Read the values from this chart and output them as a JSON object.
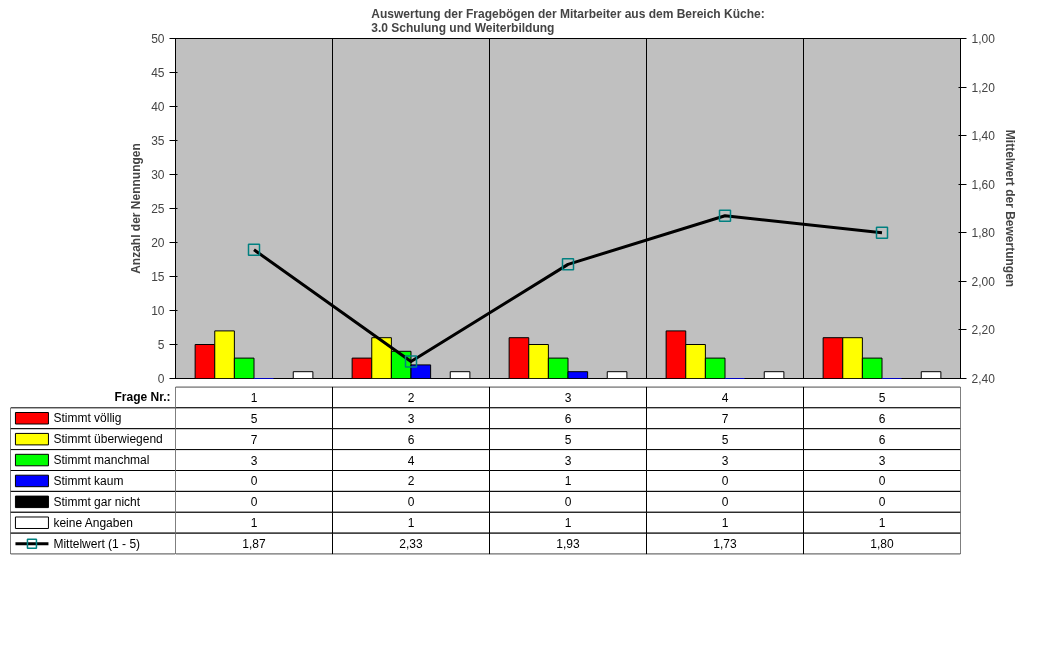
{
  "chart_data": {
    "type": "bar",
    "title": "Auswertung der Fragebögen der Mitarbeiter aus dem Bereich Küche:\n3.0 Schulung und Weiterbildung",
    "ylabel": "Anzahl der Nennungen",
    "y2label": "Mittelwert der Bewertungen",
    "annotations": [
      "Frage Nr.:"
    ],
    "categories": [
      "1",
      "2",
      "3",
      "4",
      "5"
    ],
    "series": [
      {
        "name": "Stimmt völlig",
        "color": "#ff0000",
        "values": [
          5,
          3,
          6,
          7,
          6
        ]
      },
      {
        "name": "Stimmt überwiegend",
        "color": "#ffff00",
        "values": [
          7,
          6,
          5,
          5,
          6
        ]
      },
      {
        "name": "Stimmt manchmal",
        "color": "#00ff00",
        "values": [
          3,
          4,
          3,
          3,
          3
        ]
      },
      {
        "name": "Stimmt kaum",
        "color": "#0000ff",
        "values": [
          0,
          2,
          1,
          0,
          0
        ]
      },
      {
        "name": "Stimmt gar nicht",
        "color": "#000000",
        "values": [
          0,
          0,
          0,
          0,
          0
        ]
      },
      {
        "name": "keine Angaben",
        "color": "#ffffff",
        "values": [
          1,
          1,
          1,
          1,
          1
        ]
      },
      {
        "name": "Mittelwert (1 - 5)",
        "type": "line",
        "axis": "y2",
        "color": "#000000",
        "marker": "square",
        "values": [
          1.87,
          2.33,
          1.93,
          1.73,
          1.8
        ],
        "value_labels": [
          "1,87",
          "2,33",
          "1,93",
          "1,73",
          "1,80"
        ]
      }
    ],
    "ylim": [
      0,
      50
    ],
    "yticks": [
      0,
      5,
      10,
      15,
      20,
      25,
      30,
      35,
      40,
      45,
      50
    ],
    "y2lim": [
      2.4,
      1.0
    ],
    "y2ticks": [
      {
        "value": 1.0,
        "label": "1,00"
      },
      {
        "value": 1.2,
        "label": "1,20"
      },
      {
        "value": 1.4,
        "label": "1,40"
      },
      {
        "value": 1.6,
        "label": "1,60"
      },
      {
        "value": 1.8,
        "label": "1,80"
      },
      {
        "value": 2.0,
        "label": "2,00"
      },
      {
        "value": 2.2,
        "label": "2,20"
      },
      {
        "value": 2.4,
        "label": "2,40"
      }
    ],
    "data_labels": true,
    "legend": "bottom",
    "grid": false
  }
}
